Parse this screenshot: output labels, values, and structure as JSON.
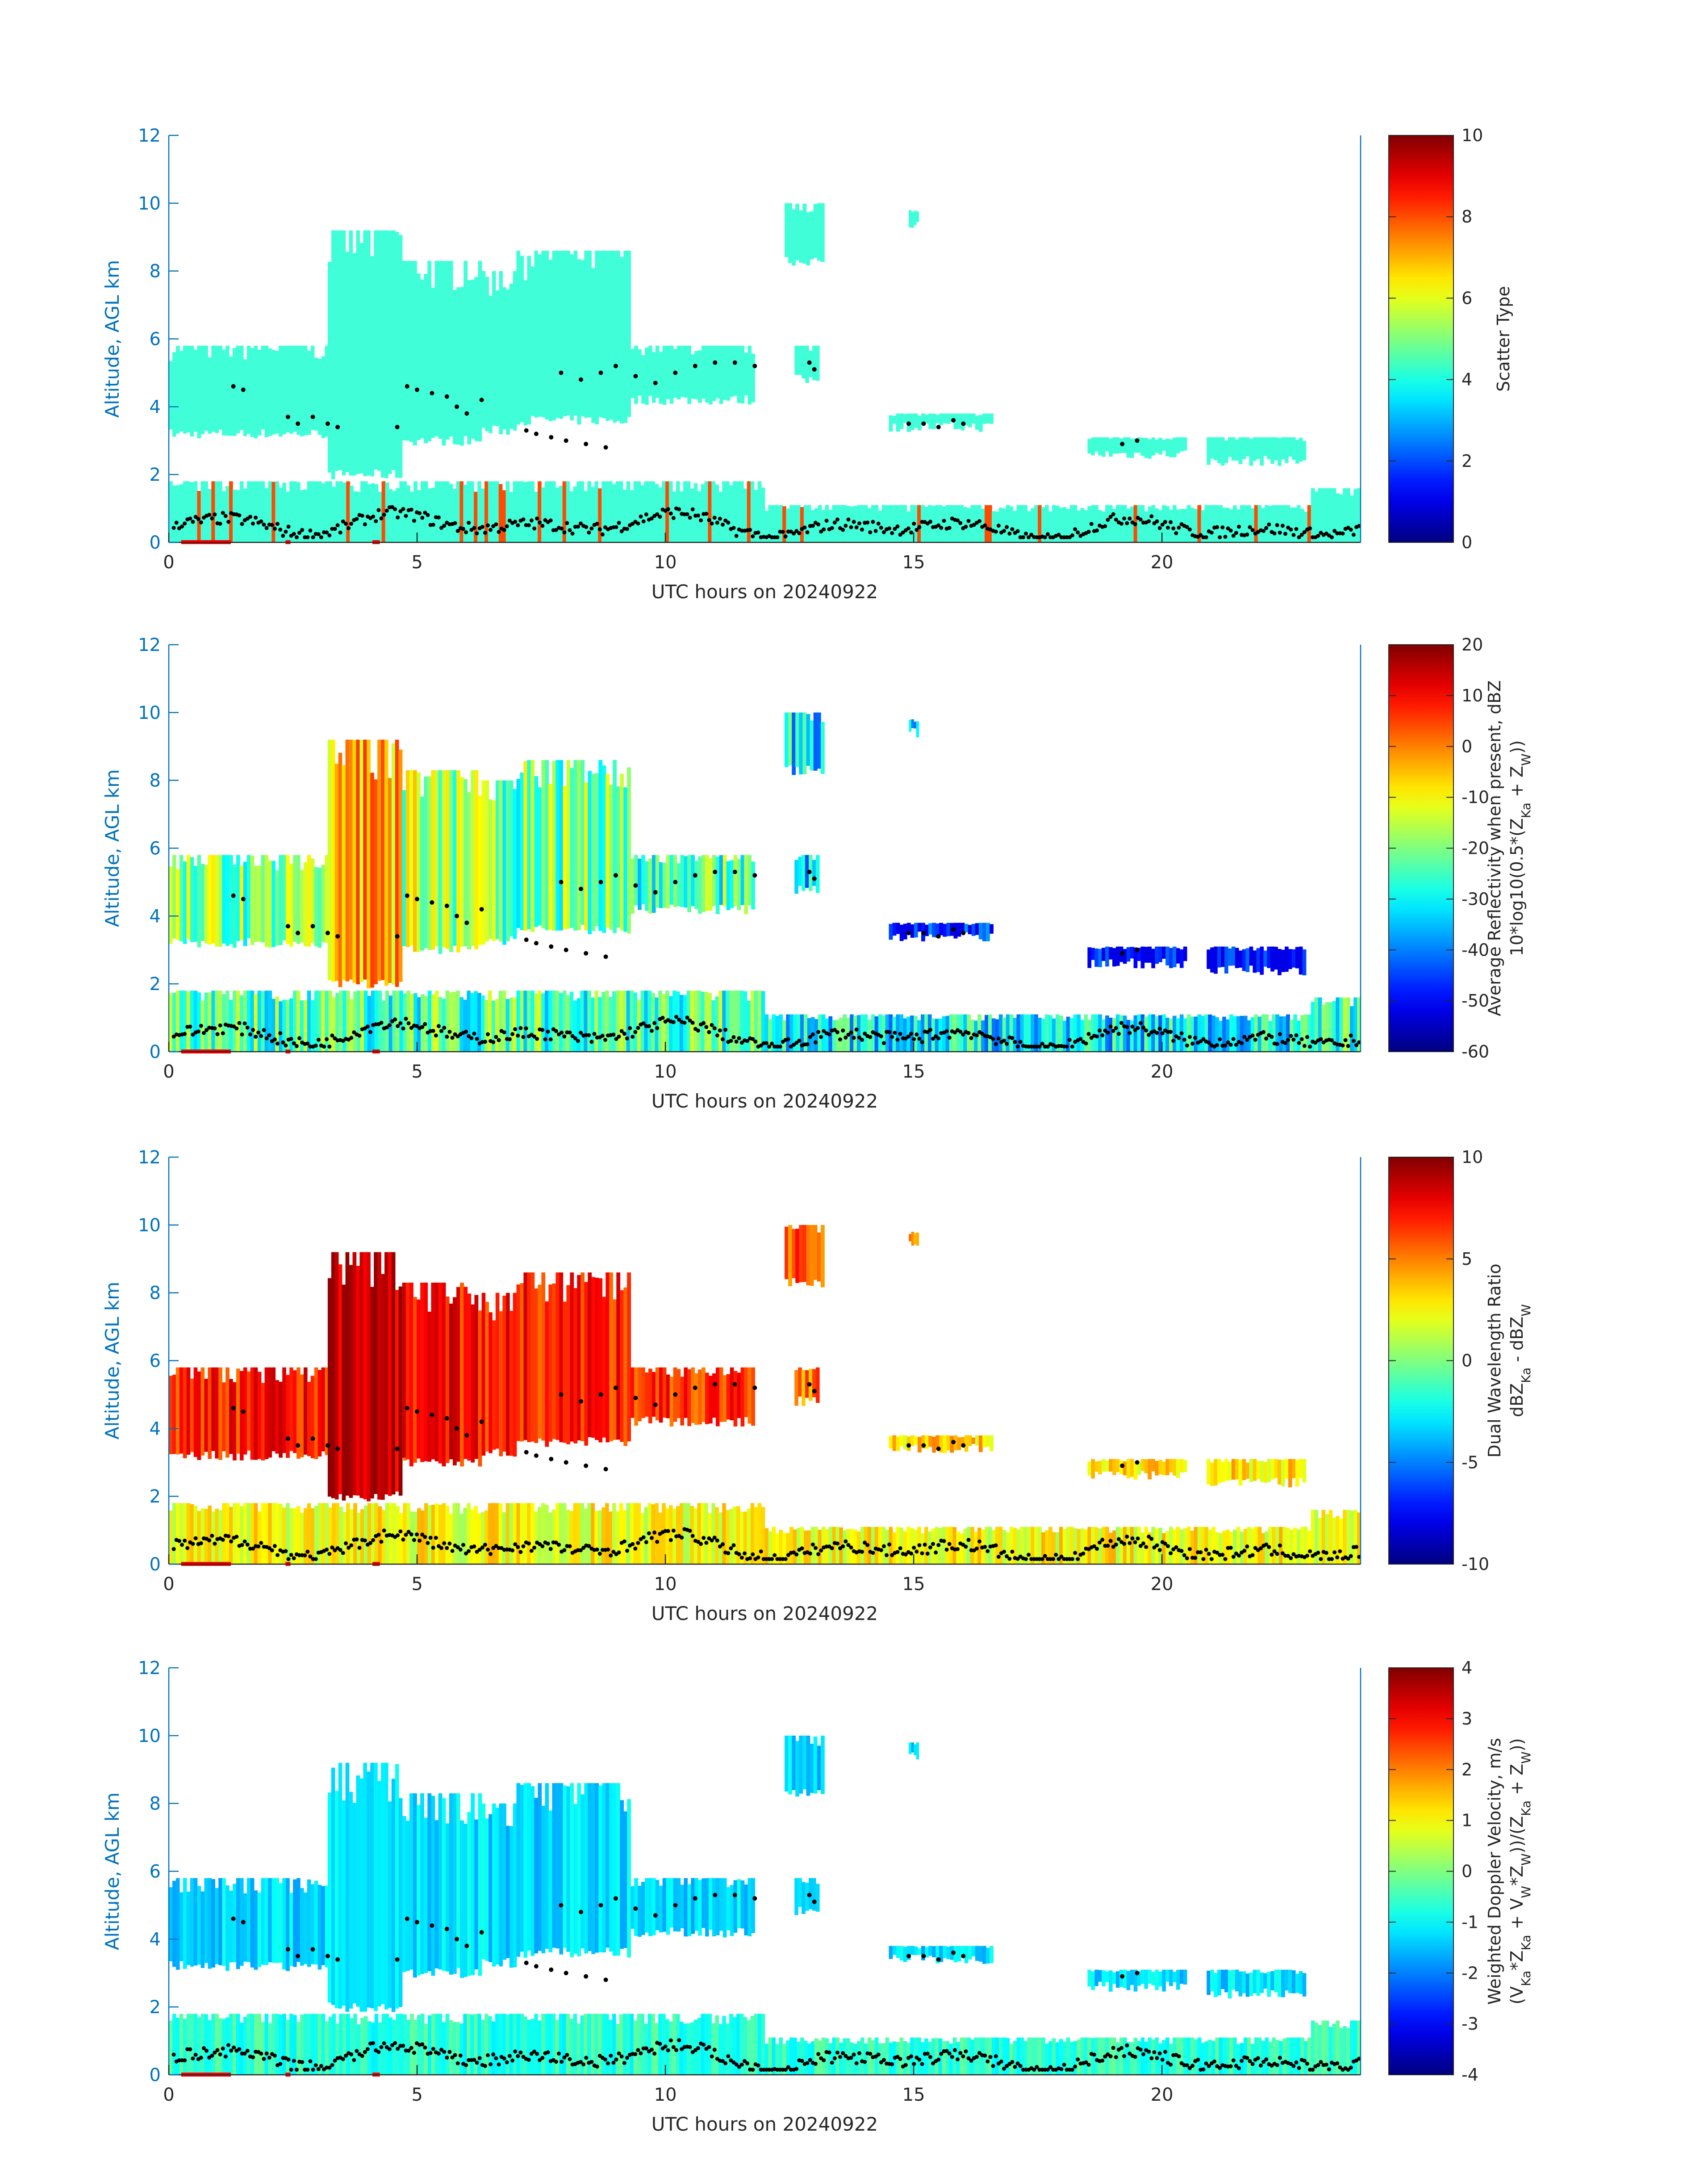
{
  "colors": {
    "axis_blue": "#0072BD",
    "axis_dark": "#262626",
    "marker_black": "#000000",
    "flag_red": "#ff0000",
    "colormap": "jet"
  },
  "chart_data": [
    {
      "type": "heatmap",
      "ylabel": "Altitude, AGL km",
      "xlabel": "UTC hours on 20240922",
      "xlim": [
        0,
        24
      ],
      "ylim": [
        0,
        12
      ],
      "xticks": [
        "0",
        "5",
        "10",
        "15",
        "20"
      ],
      "yticks": [
        "0",
        "2",
        "4",
        "6",
        "8",
        "10",
        "12"
      ],
      "colorbar": {
        "label": "Scatter Type",
        "label2": "",
        "range": [
          0,
          10
        ],
        "ticks": [
          "0",
          "2",
          "4",
          "6",
          "8",
          "10"
        ]
      },
      "field": "scatter_type",
      "typical_value": 3.8
    },
    {
      "type": "heatmap",
      "ylabel": "Altitude, AGL km",
      "xlabel": "UTC hours on 20240922",
      "xlim": [
        0,
        24
      ],
      "ylim": [
        0,
        12
      ],
      "xticks": [
        "0",
        "5",
        "10",
        "15",
        "20"
      ],
      "yticks": [
        "0",
        "2",
        "4",
        "6",
        "8",
        "10",
        "12"
      ],
      "colorbar": {
        "label": "Average Reflectivity when present, dBZ",
        "label2": "10*log10(0.5*(Z_Ka + Z_W))",
        "range": [
          -60,
          20
        ],
        "ticks": [
          "-60",
          "-50",
          "-40",
          "-30",
          "-20",
          "-10",
          "0",
          "10",
          "20"
        ]
      },
      "field": "reflectivity",
      "typical_value": -15
    },
    {
      "type": "heatmap",
      "ylabel": "Altitude, AGL km",
      "xlabel": "UTC hours on 20240922",
      "xlim": [
        0,
        24
      ],
      "ylim": [
        0,
        12
      ],
      "xticks": [
        "0",
        "5",
        "10",
        "15",
        "20"
      ],
      "yticks": [
        "0",
        "2",
        "4",
        "6",
        "8",
        "10",
        "12"
      ],
      "colorbar": {
        "label": "Dual Wavelength Ratio",
        "label2": "dBZ_Ka - dBZ_W",
        "range": [
          -10,
          10
        ],
        "ticks": [
          "-10",
          "-5",
          "0",
          "5",
          "10"
        ]
      },
      "field": "dwr",
      "typical_value": 5
    },
    {
      "type": "heatmap",
      "ylabel": "Altitude, AGL km",
      "xlabel": "UTC hours on 20240922",
      "xlim": [
        0,
        24
      ],
      "ylim": [
        0,
        12
      ],
      "xticks": [
        "0",
        "5",
        "10",
        "15",
        "20"
      ],
      "yticks": [
        "0",
        "2",
        "4",
        "6",
        "8",
        "10",
        "12"
      ],
      "colorbar": {
        "label": "Weighted Doppler Velocity, m/s",
        "label2": "(V_Ka*Z_Ka + V_W*Z_W))/(Z_Ka + Z_W))",
        "range": [
          -4,
          4
        ],
        "ticks": [
          "-4",
          "-3",
          "-2",
          "-1",
          "0",
          "1",
          "2",
          "3",
          "4"
        ]
      },
      "field": "doppler",
      "typical_value": -0.8
    }
  ],
  "cloud_regions": [
    {
      "x": [
        0.0,
        5.0
      ],
      "y": [
        3.2,
        5.8
      ],
      "c": 0.55
    },
    {
      "x": [
        3.2,
        4.7
      ],
      "y": [
        2.0,
        9.2
      ],
      "c": 0.75
    },
    {
      "x": [
        4.7,
        6.3
      ],
      "y": [
        3.0,
        8.3
      ],
      "c": 0.6
    },
    {
      "x": [
        6.3,
        7.0
      ],
      "y": [
        3.3,
        8.0
      ],
      "c": 0.55
    },
    {
      "x": [
        7.0,
        9.3
      ],
      "y": [
        3.6,
        8.6
      ],
      "c": 0.55
    },
    {
      "x": [
        9.3,
        11.8
      ],
      "y": [
        4.2,
        5.8
      ],
      "c": 0.5
    },
    {
      "x": [
        12.4,
        13.2
      ],
      "y": [
        8.3,
        10.0
      ],
      "c": 0.4
    },
    {
      "x": [
        12.6,
        13.1
      ],
      "y": [
        4.8,
        5.8
      ],
      "c": 0.35
    },
    {
      "x": [
        14.9,
        15.1
      ],
      "y": [
        9.4,
        9.8
      ],
      "c": 0.3
    },
    {
      "x": [
        14.5,
        16.6
      ],
      "y": [
        3.4,
        3.8
      ],
      "c": 0.15
    },
    {
      "x": [
        18.5,
        20.5
      ],
      "y": [
        2.6,
        3.1
      ],
      "c": 0.1
    },
    {
      "x": [
        20.9,
        22.9
      ],
      "y": [
        2.4,
        3.1
      ],
      "c": 0.1
    },
    {
      "x": [
        0.0,
        12.0
      ],
      "y": [
        0.0,
        1.8
      ],
      "c": 0.5
    },
    {
      "x": [
        12.0,
        24.0
      ],
      "y": [
        0.0,
        1.1
      ],
      "c": 0.4
    },
    {
      "x": [
        23.0,
        24.0
      ],
      "y": [
        0.0,
        1.6
      ],
      "c": 0.5
    }
  ],
  "marker_points": [
    [
      1.3,
      4.6
    ],
    [
      1.5,
      4.5
    ],
    [
      2.4,
      3.7
    ],
    [
      2.6,
      3.5
    ],
    [
      2.9,
      3.7
    ],
    [
      3.2,
      3.5
    ],
    [
      3.4,
      3.4
    ],
    [
      4.6,
      3.4
    ],
    [
      4.8,
      4.6
    ],
    [
      5.0,
      4.5
    ],
    [
      5.3,
      4.4
    ],
    [
      5.6,
      4.3
    ],
    [
      5.8,
      4.0
    ],
    [
      6.0,
      3.8
    ],
    [
      6.3,
      4.2
    ],
    [
      7.2,
      3.3
    ],
    [
      7.4,
      3.2
    ],
    [
      7.7,
      3.1
    ],
    [
      8.0,
      3.0
    ],
    [
      8.4,
      2.9
    ],
    [
      8.8,
      2.8
    ],
    [
      7.9,
      5.0
    ],
    [
      8.3,
      4.8
    ],
    [
      8.7,
      5.0
    ],
    [
      9.0,
      5.2
    ],
    [
      9.4,
      4.9
    ],
    [
      9.8,
      4.7
    ],
    [
      10.2,
      5.0
    ],
    [
      10.6,
      5.2
    ],
    [
      11.0,
      5.3
    ],
    [
      11.4,
      5.3
    ],
    [
      11.8,
      5.2
    ],
    [
      12.9,
      5.3
    ],
    [
      13.0,
      5.1
    ],
    [
      14.9,
      3.5
    ],
    [
      15.2,
      3.5
    ],
    [
      15.5,
      3.4
    ],
    [
      15.8,
      3.6
    ],
    [
      16.0,
      3.5
    ],
    [
      19.2,
      2.9
    ],
    [
      19.5,
      3.0
    ]
  ],
  "bottom_flags": [
    [
      0.25,
      1.25
    ],
    [
      2.35,
      2.45
    ],
    [
      4.1,
      4.25
    ]
  ],
  "decimal_hours_label_note": ""
}
